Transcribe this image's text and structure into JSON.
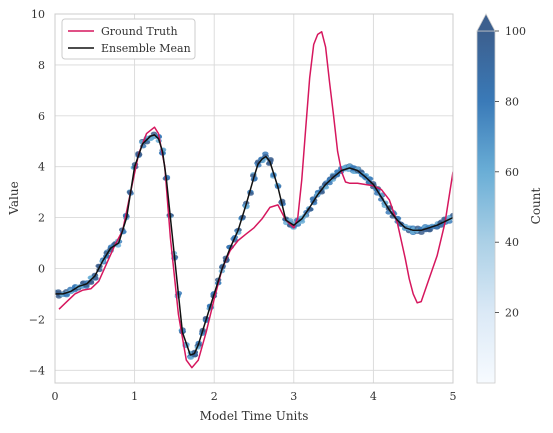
{
  "chart_data": {
    "type": "line",
    "xlabel": "Model Time Units",
    "ylabel": "Value",
    "xlim": [
      0,
      5
    ],
    "ylim": [
      -4.5,
      10
    ],
    "xticks": [
      "0",
      "1",
      "2",
      "3",
      "4",
      "5"
    ],
    "yticks": [
      "−4",
      "−2",
      "0",
      "2",
      "4",
      "6",
      "8",
      "10"
    ],
    "grid": true,
    "legend": {
      "position": "top-left",
      "entries": [
        "Ground Truth",
        "Ensemble Mean"
      ]
    },
    "series": [
      {
        "name": "Ground Truth",
        "color": "#d6175e",
        "x": [
          0.05,
          0.15,
          0.25,
          0.35,
          0.45,
          0.55,
          0.65,
          0.75,
          0.85,
          0.95,
          1.05,
          1.15,
          1.25,
          1.3,
          1.38,
          1.45,
          1.55,
          1.65,
          1.72,
          1.8,
          1.9,
          2.0,
          2.1,
          2.2,
          2.3,
          2.4,
          2.5,
          2.6,
          2.7,
          2.8,
          2.9,
          3.0,
          3.05,
          3.1,
          3.15,
          3.2,
          3.25,
          3.3,
          3.35,
          3.4,
          3.45,
          3.5,
          3.55,
          3.6,
          3.65,
          3.7,
          3.8,
          3.9,
          4.0,
          4.1,
          4.2,
          4.3,
          4.4,
          4.45,
          4.5,
          4.55,
          4.6,
          4.7,
          4.8,
          4.9,
          5.0
        ],
        "y": [
          -1.6,
          -1.3,
          -1.0,
          -0.85,
          -0.8,
          -0.5,
          0.2,
          0.9,
          1.5,
          3.0,
          4.5,
          5.3,
          5.55,
          5.3,
          4.0,
          1.2,
          -1.8,
          -3.6,
          -3.9,
          -3.6,
          -2.5,
          -1.2,
          0.0,
          0.7,
          1.1,
          1.35,
          1.6,
          1.95,
          2.4,
          2.5,
          1.9,
          1.6,
          2.0,
          3.5,
          5.5,
          7.5,
          8.8,
          9.2,
          9.3,
          8.7,
          7.3,
          6.0,
          4.6,
          3.8,
          3.4,
          3.35,
          3.35,
          3.3,
          3.25,
          3.1,
          2.7,
          1.8,
          0.4,
          -0.4,
          -1.0,
          -1.35,
          -1.3,
          -0.4,
          0.5,
          1.8,
          3.8
        ]
      },
      {
        "name": "Ensemble Mean",
        "color": "#111111",
        "x": [
          0.0,
          0.1,
          0.2,
          0.3,
          0.4,
          0.5,
          0.6,
          0.7,
          0.8,
          0.9,
          1.0,
          1.1,
          1.2,
          1.25,
          1.3,
          1.35,
          1.4,
          1.5,
          1.6,
          1.7,
          1.75,
          1.8,
          1.9,
          2.0,
          2.1,
          2.2,
          2.3,
          2.4,
          2.5,
          2.55,
          2.6,
          2.65,
          2.7,
          2.8,
          2.9,
          3.0,
          3.1,
          3.2,
          3.3,
          3.4,
          3.5,
          3.6,
          3.7,
          3.8,
          3.9,
          4.0,
          4.1,
          4.2,
          4.3,
          4.4,
          4.5,
          4.6,
          4.7,
          4.8,
          4.9,
          5.0
        ],
        "y": [
          -1.0,
          -1.0,
          -0.9,
          -0.7,
          -0.6,
          -0.3,
          0.3,
          0.8,
          1.0,
          2.0,
          4.0,
          4.9,
          5.2,
          5.25,
          5.1,
          4.6,
          3.5,
          0.5,
          -2.5,
          -3.4,
          -3.35,
          -3.0,
          -2.0,
          -1.0,
          0.0,
          0.8,
          1.5,
          2.5,
          3.6,
          4.1,
          4.3,
          4.4,
          4.2,
          3.2,
          1.9,
          1.7,
          1.95,
          2.4,
          2.9,
          3.3,
          3.6,
          3.85,
          3.95,
          3.85,
          3.6,
          3.3,
          2.8,
          2.3,
          1.9,
          1.6,
          1.5,
          1.5,
          1.6,
          1.7,
          1.85,
          2.0
        ]
      }
    ],
    "colorbar": {
      "label": "Count",
      "range": [
        0,
        100
      ],
      "ticks": [
        "20",
        "40",
        "60",
        "80",
        "100"
      ],
      "colormap": [
        "#f7fbff",
        "#dbe9f6",
        "#abd0e6",
        "#6aaed6",
        "#3a7ab8",
        "#3c5f8e"
      ],
      "extend": "max"
    }
  }
}
